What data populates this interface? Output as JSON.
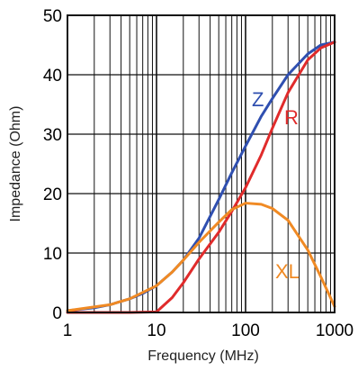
{
  "chart_data": {
    "type": "line",
    "title": "",
    "xlabel": "Frequency (MHz)",
    "ylabel": "Impedance (Ohm)",
    "xscale": "log",
    "xlim": [
      1,
      1000
    ],
    "ylim": [
      0,
      50
    ],
    "grid": true,
    "legend": "inline labels",
    "x_ticks": [
      1,
      10,
      100,
      1000
    ],
    "x_tick_labels": [
      "1",
      "10",
      "100",
      "1000"
    ],
    "y_ticks": [
      0,
      10,
      20,
      30,
      40,
      50
    ],
    "y_tick_labels": [
      "0",
      "10",
      "20",
      "30",
      "40",
      "50"
    ],
    "series": [
      {
        "name": "Z",
        "color": "#2f4fb0",
        "x": [
          1,
          2,
          3,
          5,
          7,
          10,
          15,
          20,
          30,
          50,
          70,
          100,
          150,
          200,
          300,
          500,
          700,
          1000
        ],
        "y": [
          0.3,
          0.8,
          1.3,
          2.3,
          3.2,
          4.5,
          6.8,
          8.8,
          12.5,
          19.0,
          23.5,
          28.0,
          33.0,
          36.0,
          40.0,
          43.5,
          45.0,
          45.5
        ]
      },
      {
        "name": "R",
        "color": "#e02b2b",
        "x": [
          1,
          3,
          5,
          10,
          15,
          20,
          30,
          50,
          70,
          100,
          150,
          200,
          300,
          500,
          700,
          1000
        ],
        "y": [
          0,
          0,
          0,
          0.1,
          2.5,
          5.0,
          9.0,
          13.5,
          17.0,
          21.0,
          26.5,
          31.0,
          37.0,
          42.5,
          44.5,
          45.5
        ]
      },
      {
        "name": "XL",
        "color": "#f08a24",
        "x": [
          1,
          3,
          5,
          10,
          15,
          20,
          30,
          50,
          70,
          100,
          150,
          200,
          300,
          500,
          700,
          1000
        ],
        "y": [
          0.3,
          1.3,
          2.3,
          4.5,
          6.8,
          8.8,
          11.8,
          15.2,
          17.3,
          18.4,
          18.2,
          17.5,
          15.5,
          10.5,
          6.0,
          1.0
        ]
      }
    ]
  }
}
